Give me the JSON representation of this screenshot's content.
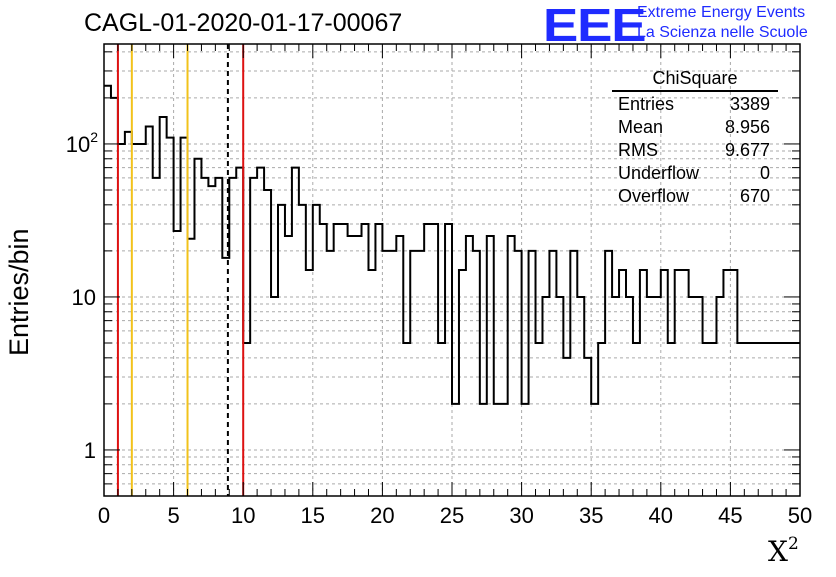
{
  "chart_data": {
    "type": "histogram",
    "title": "CAGL-01-2020-01-17-00067",
    "xlabel": "X",
    "xlabel_superscript": "2",
    "ylabel": "Entries/bin",
    "xlim": [
      0,
      50
    ],
    "ylim": [
      0.5,
      450
    ],
    "yscale": "log",
    "grid": true,
    "bin_width": 0.5,
    "x_ticks": [
      "0",
      "5",
      "10",
      "15",
      "20",
      "25",
      "30",
      "35",
      "40",
      "45",
      "50"
    ],
    "y_ticks": [
      {
        "value": 1,
        "label": "1"
      },
      {
        "value": 10,
        "label": "10"
      },
      {
        "value": 100,
        "label": "10",
        "sup": "2"
      }
    ],
    "values": [
      240,
      200,
      100,
      120,
      100,
      100,
      130,
      60,
      150,
      110,
      27,
      110,
      24,
      80,
      60,
      53,
      60,
      18,
      60,
      70,
      5,
      60,
      70,
      50,
      10,
      40,
      25,
      70,
      40,
      15,
      40,
      30,
      20,
      30,
      30,
      25,
      25,
      30,
      15,
      30,
      20,
      20,
      25,
      5,
      20,
      20,
      30,
      30,
      5,
      30,
      2,
      15,
      25,
      20,
      2,
      25,
      2,
      2,
      25,
      20,
      2,
      20,
      5,
      10,
      20,
      10,
      4,
      20,
      10,
      4,
      2,
      5,
      20,
      10,
      15,
      10,
      5,
      15,
      10,
      10,
      15,
      5,
      15,
      15,
      10,
      10,
      5,
      5,
      10,
      15,
      15,
      5,
      5,
      5,
      5,
      5,
      5,
      5,
      5,
      5
    ],
    "lines": [
      {
        "x": 1,
        "color": "#dd1111",
        "style": "solid"
      },
      {
        "x": 2,
        "color": "#f2c21b",
        "style": "solid"
      },
      {
        "x": 6,
        "color": "#f2c21b",
        "style": "solid"
      },
      {
        "x": 8.9,
        "color": "#000000",
        "style": "dashed"
      },
      {
        "x": 10,
        "color": "#dd1111",
        "style": "solid"
      }
    ],
    "stats": {
      "title": "ChiSquare",
      "rows": [
        {
          "label": "Entries",
          "value": "3389"
        },
        {
          "label": "Mean",
          "value": "8.956"
        },
        {
          "label": "RMS",
          "value": "9.677"
        },
        {
          "label": "Underflow",
          "value": "0"
        },
        {
          "label": "Overflow",
          "value": "670"
        }
      ]
    }
  },
  "logo": {
    "mark": "EEE",
    "line1": "Extreme Energy Events",
    "line2": "La Scienza nelle Scuole",
    "color": "#1f2bff"
  }
}
